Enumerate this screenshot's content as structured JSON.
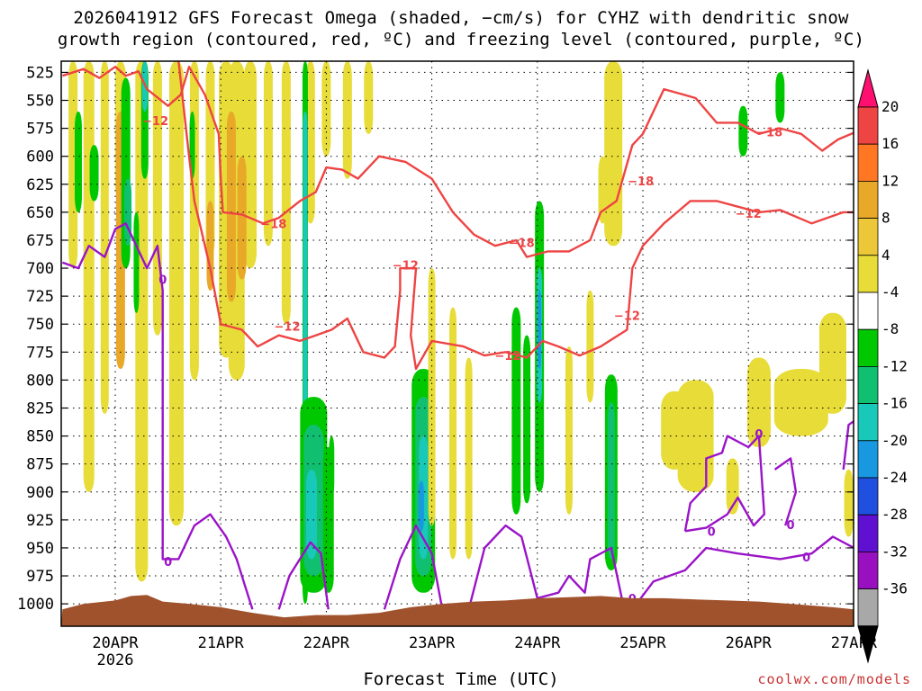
{
  "chart_data": {
    "type": "heatmap",
    "title": "2026041912 GFS Forecast Omega (shaded, −cm/s) for CYHZ with dendritic snow",
    "subtitle": "growth region (contoured, red, ºC) and freezing level (contoured, purple, ºC)",
    "xlabel": "Forecast Time (UTC)",
    "ylabel": "",
    "x_ticks": [
      "20APR",
      "21APR",
      "22APR",
      "23APR",
      "24APR",
      "25APR",
      "26APR",
      "27APR"
    ],
    "x_year_label": "2026",
    "y_ticks": [
      525,
      550,
      575,
      600,
      625,
      650,
      675,
      700,
      725,
      750,
      775,
      800,
      825,
      850,
      875,
      900,
      925,
      950,
      975,
      1000
    ],
    "ylim": [
      1020,
      515
    ],
    "grid": true,
    "colorbar": {
      "levels": [
        20,
        16,
        12,
        8,
        4,
        -4,
        -8,
        -12,
        -16,
        -20,
        -24,
        -28,
        -32,
        -36
      ],
      "colors": [
        "#ff1070",
        "#ee4444",
        "#ff7722",
        "#e8a828",
        "#ecc838",
        "#e8dc38",
        "#ffffff",
        "#00c800",
        "#10c070",
        "#18c8b8",
        "#1898e0",
        "#2050e0",
        "#6010d0",
        "#9810c0",
        "#a8a8a8",
        "#000000"
      ]
    },
    "contours": [
      {
        "color": "#ee4444",
        "label": "-12"
      },
      {
        "color": "#ee4444",
        "label": "-18"
      },
      {
        "color": "#9a14c8",
        "label": "0"
      }
    ],
    "terrain_color": "#a0522d"
  },
  "credit": "coolwx.com/models"
}
